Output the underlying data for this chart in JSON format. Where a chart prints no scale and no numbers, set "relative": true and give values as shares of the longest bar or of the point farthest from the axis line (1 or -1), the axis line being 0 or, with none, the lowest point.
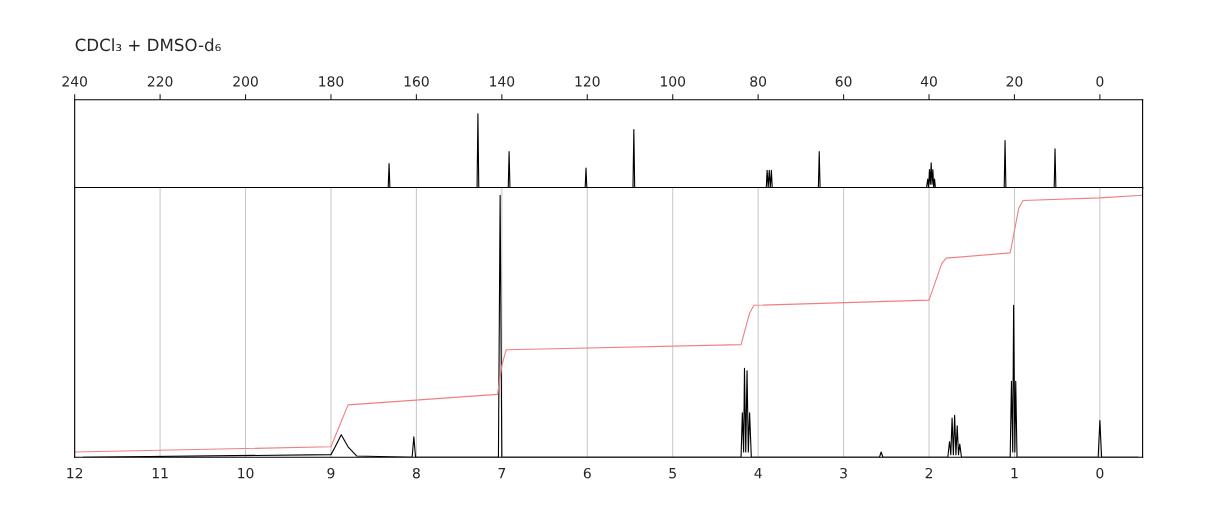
{
  "chart_data": [
    {
      "type": "line",
      "title": "CDCl₃ + DMSO-d₆",
      "relative": true,
      "xlim": [
        240,
        -10
      ],
      "xticks": [
        240,
        220,
        200,
        180,
        160,
        140,
        120,
        100,
        80,
        60,
        40,
        20,
        0
      ],
      "tick_labels": "x",
      "grid": false,
      "legend": false,
      "series": [
        {
          "color": "#000000",
          "x": [
            238,
            166.6,
            166.4,
            166.2,
            145.8,
            145.6,
            145.4,
            138.5,
            138.3,
            138.1,
            120.5,
            120.3,
            120.1,
            109.3,
            109.1,
            108.9,
            78.1,
            77.9,
            77.65,
            77.4,
            77.15,
            76.9,
            76.7,
            65.9,
            65.7,
            65.5,
            40.6,
            40.3,
            40.1,
            39.9,
            39.7,
            39.5,
            39.3,
            39.1,
            38.9,
            38.7,
            38.5,
            22.4,
            22.2,
            22.0,
            10.7,
            10.5,
            10.3,
            -8
          ],
          "values": [
            0,
            0,
            0.33,
            0,
            0,
            1,
            0,
            0,
            0.49,
            0,
            0,
            0.27,
            0,
            0,
            0.79,
            0,
            0,
            0.24,
            0,
            0.24,
            0,
            0.24,
            0,
            0,
            0.49,
            0,
            0,
            0.12,
            0,
            0.25,
            0.05,
            0.34,
            0.05,
            0.25,
            0,
            0.12,
            0,
            0,
            0.64,
            0,
            0,
            0.53,
            0,
            0
          ]
        }
      ]
    },
    {
      "type": "line",
      "relative": true,
      "xlim": [
        12,
        -0.5
      ],
      "xticks": [
        12,
        11,
        10,
        9,
        8,
        7,
        6,
        5,
        4,
        3,
        2,
        1,
        0
      ],
      "tick_labels": "x",
      "grid": "x",
      "legend": false,
      "series": [
        {
          "color": "#000000",
          "x": [
            11.9,
            9.0,
            8.95,
            8.88,
            8.8,
            8.7,
            8.05,
            8.03,
            8.01,
            7.04,
            7.02,
            7.0,
            4.2,
            4.185,
            4.17,
            4.16,
            4.145,
            4.13,
            4.115,
            4.1,
            4.08,
            2.58,
            2.56,
            2.54,
            1.78,
            1.76,
            1.745,
            1.73,
            1.715,
            1.7,
            1.685,
            1.67,
            1.655,
            1.64,
            1.62,
            1.05,
            1.035,
            1.02,
            1.01,
            0.995,
            0.985,
            0.97,
            0.02,
            0.0,
            -0.02,
            -0.45
          ],
          "values": [
            0,
            0.01,
            0.04,
            0.086,
            0.04,
            0.005,
            0,
            0.078,
            0,
            0,
            1,
            0,
            0,
            0.17,
            0.02,
            0.34,
            0.02,
            0.33,
            0.02,
            0.17,
            0,
            0,
            0.02,
            0,
            0,
            0.06,
            0.01,
            0.15,
            0.01,
            0.16,
            0.01,
            0.12,
            0.01,
            0.05,
            0,
            0,
            0.29,
            0.02,
            0.58,
            0.02,
            0.29,
            0,
            0,
            0.14,
            0,
            0
          ]
        },
        {
          "color": "#f08080",
          "x": [
            12,
            9.0,
            8.9,
            8.8,
            7.05,
            7.0,
            6.95,
            4.2,
            4.1,
            4.05,
            2.0,
            1.85,
            1.8,
            1.05,
            0.95,
            0.9,
            0,
            -0.5
          ],
          "values": [
            0.02,
            0.04,
            0.12,
            0.2,
            0.24,
            0.35,
            0.41,
            0.43,
            0.55,
            0.58,
            0.6,
            0.74,
            0.76,
            0.78,
            0.95,
            0.98,
            0.99,
            1.0
          ]
        }
      ]
    }
  ]
}
